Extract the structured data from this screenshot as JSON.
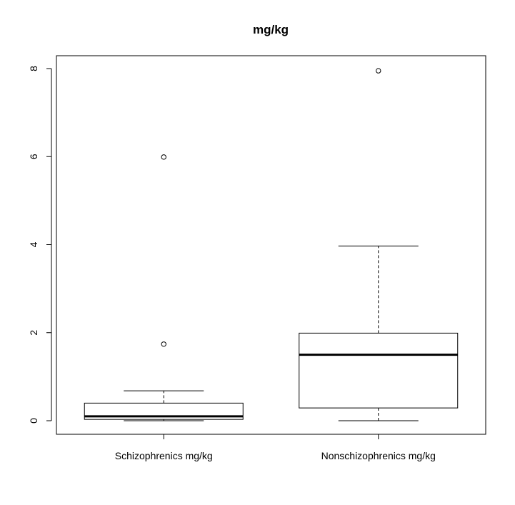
{
  "chart_data": {
    "type": "boxplot",
    "title": "mg/kg",
    "xlabel": "",
    "ylabel": "",
    "ylim": [
      -0.3,
      8.3
    ],
    "yticks": [
      0,
      2,
      4,
      6,
      8
    ],
    "grid": false,
    "categories": [
      "Schizophrenics mg/kg",
      "Nonschizophrenics mg/kg"
    ],
    "boxes": [
      {
        "name": "Schizophrenics mg/kg",
        "min": 0.0,
        "q1": 0.03,
        "median": 0.1,
        "q3": 0.4,
        "max": 0.68,
        "outliers": [
          1.74,
          5.99
        ]
      },
      {
        "name": "Nonschizophrenics mg/kg",
        "min": 0.0,
        "q1": 0.29,
        "median": 1.5,
        "q3": 1.99,
        "max": 3.97,
        "outliers": [
          7.95
        ]
      }
    ]
  }
}
